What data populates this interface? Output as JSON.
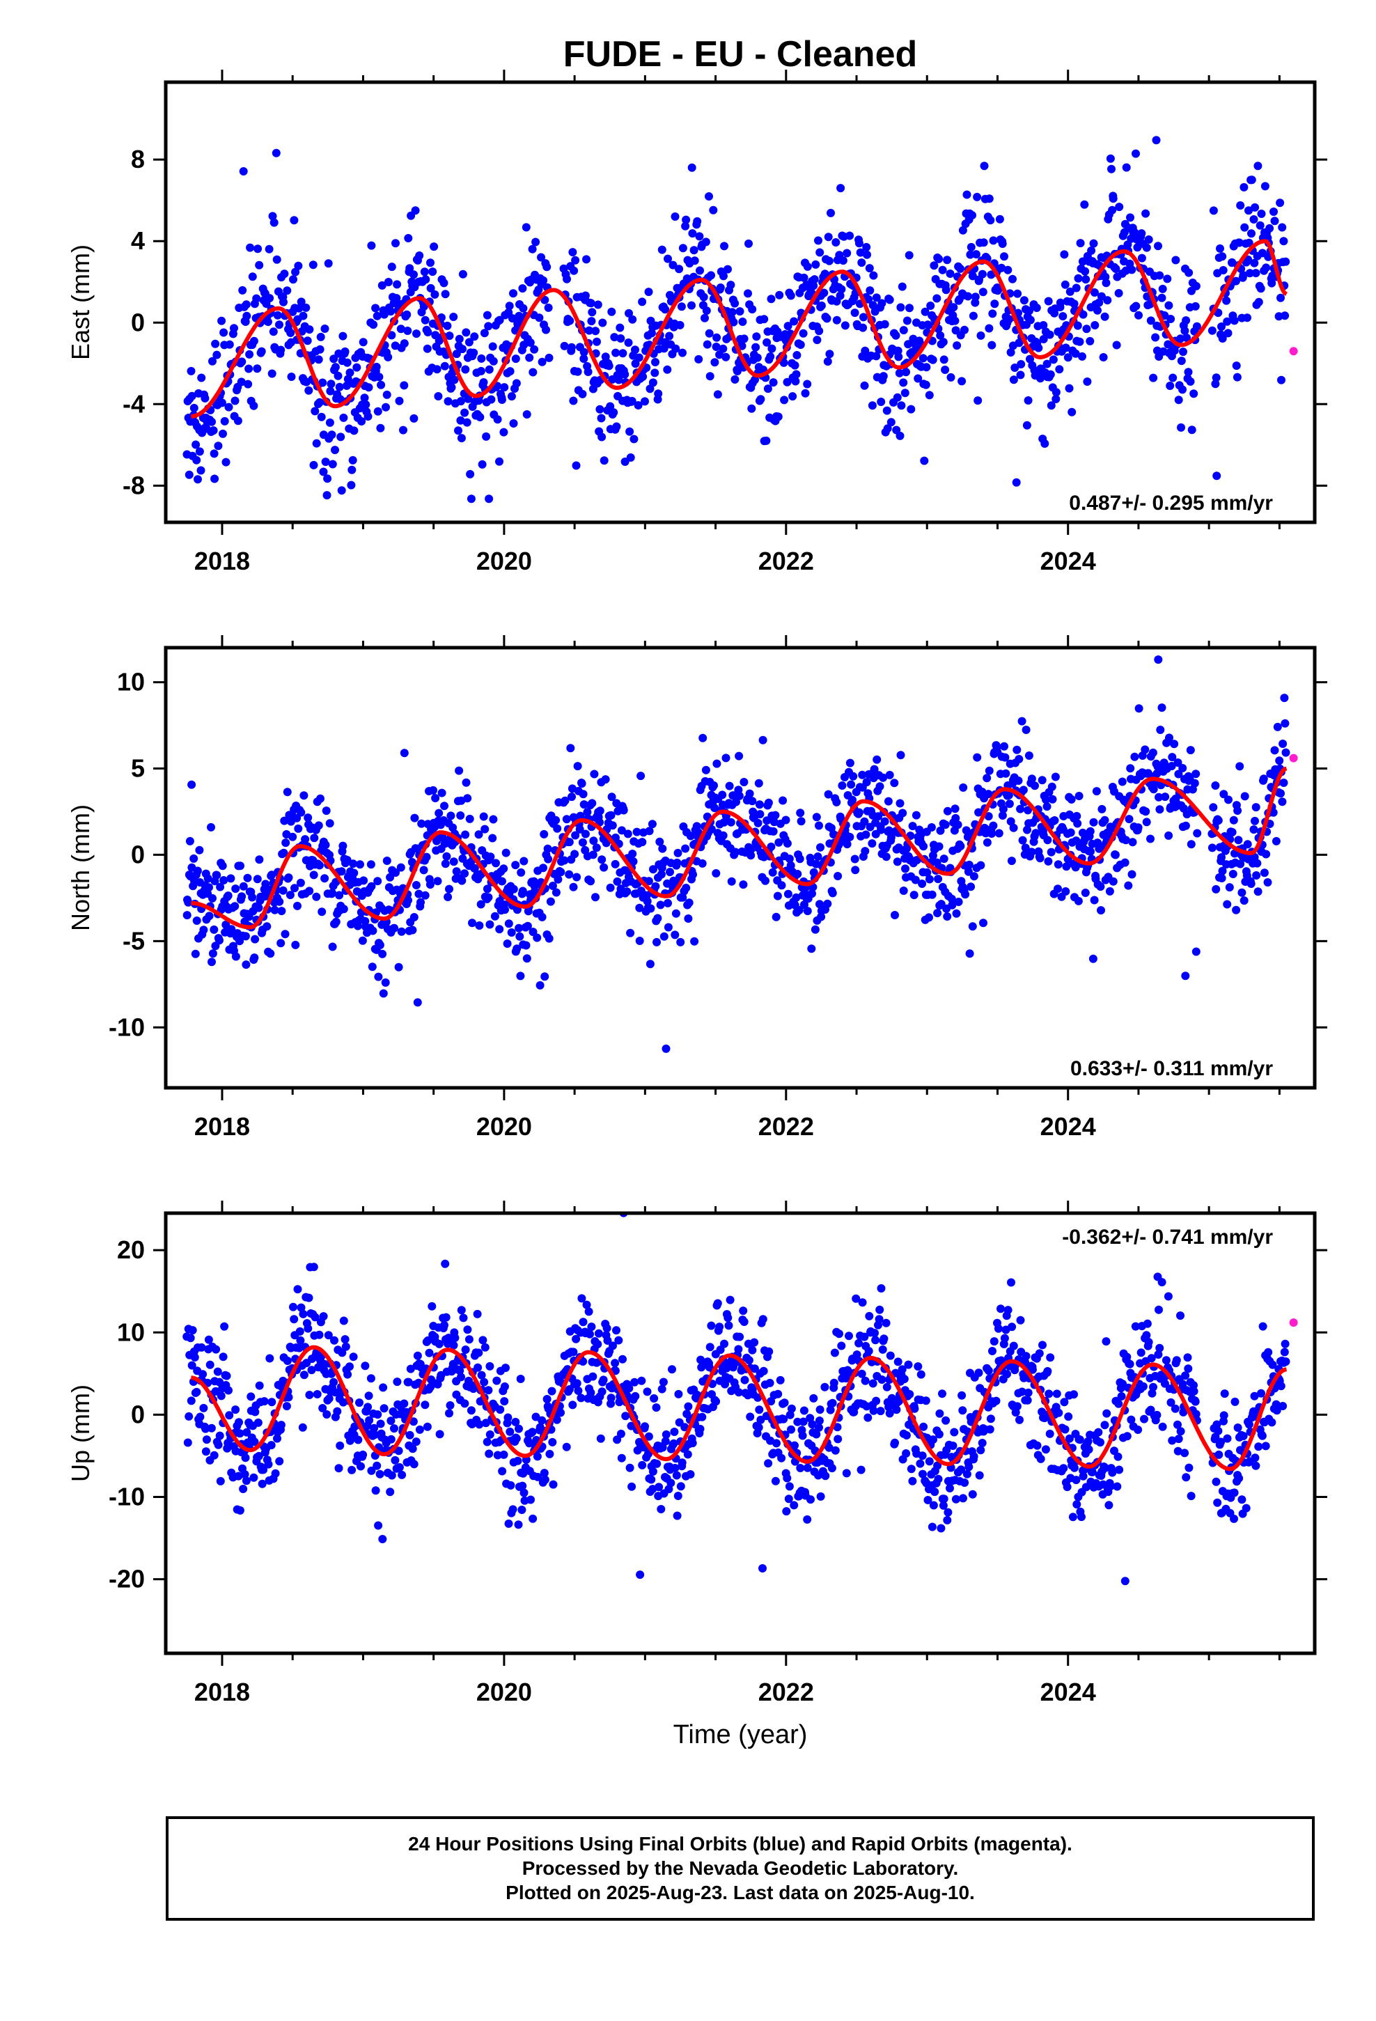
{
  "title": "FUDE  - EU - Cleaned",
  "xlabel": "Time (year)",
  "footer": {
    "line1": "24 Hour Positions Using Final Orbits (blue) and Rapid Orbits (magenta).",
    "line2": "Processed by the Nevada Geodetic Laboratory.",
    "line3": "Plotted on 2025-Aug-23. Last data on 2025-Aug-10."
  },
  "colors": {
    "final": "#0000ff",
    "rapid": "#ff1dce",
    "model": "#ff0000"
  },
  "chart_data": [
    {
      "type": "scatter",
      "component": "East",
      "ylabel": "East (mm)",
      "xlim": [
        2017.6,
        2025.75
      ],
      "ylim": [
        -9.8,
        11.8
      ],
      "yticks": [
        -8,
        -4,
        0,
        4,
        8
      ],
      "xticks": [
        2018,
        2020,
        2022,
        2024
      ],
      "velocity_label": "0.487+/- 0.295 mm/yr",
      "series": [
        {
          "name": "Final Orbits (blue)",
          "x_range": [
            2017.75,
            2025.55
          ],
          "trend_mm_per_yr": 0.487,
          "annual_amp_mm": 3.0,
          "scatter_mm": 1.8,
          "model_points": [
            [
              2017.78,
              -4.6
            ],
            [
              2018.4,
              0.7
            ],
            [
              2018.8,
              -4.1
            ],
            [
              2019.4,
              1.2
            ],
            [
              2019.8,
              -3.6
            ],
            [
              2020.35,
              1.6
            ],
            [
              2020.8,
              -3.2
            ],
            [
              2021.4,
              2.1
            ],
            [
              2021.8,
              -2.6
            ],
            [
              2022.4,
              2.5
            ],
            [
              2022.8,
              -2.2
            ],
            [
              2023.4,
              3.0
            ],
            [
              2023.8,
              -1.7
            ],
            [
              2024.4,
              3.5
            ],
            [
              2024.8,
              -1.1
            ],
            [
              2025.4,
              4.0
            ],
            [
              2025.55,
              1.4
            ]
          ]
        },
        {
          "name": "Rapid Orbits (magenta)",
          "points": [
            [
              2025.6,
              -1.4
            ]
          ]
        }
      ]
    },
    {
      "type": "scatter",
      "component": "North",
      "ylabel": "North (mm)",
      "xlim": [
        2017.6,
        2025.75
      ],
      "ylim": [
        -13.5,
        12.0
      ],
      "yticks": [
        -10,
        -5,
        0,
        5,
        10
      ],
      "xticks": [
        2018,
        2020,
        2022,
        2024
      ],
      "velocity_label": "0.633+/- 0.311 mm/yr",
      "series": [
        {
          "name": "Final Orbits (blue)",
          "x_range": [
            2017.75,
            2025.55
          ],
          "trend_mm_per_yr": 0.633,
          "annual_amp_mm": 2.6,
          "scatter_mm": 1.7,
          "model_points": [
            [
              2017.78,
              -2.8
            ],
            [
              2018.2,
              -4.2
            ],
            [
              2018.55,
              0.5
            ],
            [
              2019.15,
              -3.7
            ],
            [
              2019.55,
              1.3
            ],
            [
              2020.15,
              -3.0
            ],
            [
              2020.55,
              2.0
            ],
            [
              2021.15,
              -2.4
            ],
            [
              2021.55,
              2.5
            ],
            [
              2022.15,
              -1.7
            ],
            [
              2022.55,
              3.1
            ],
            [
              2023.15,
              -1.1
            ],
            [
              2023.55,
              3.8
            ],
            [
              2024.15,
              -0.5
            ],
            [
              2024.6,
              4.4
            ],
            [
              2025.3,
              0.1
            ],
            [
              2025.55,
              5.0
            ]
          ]
        },
        {
          "name": "Rapid Orbits (magenta)",
          "points": [
            [
              2025.6,
              5.6
            ]
          ]
        }
      ]
    },
    {
      "type": "scatter",
      "component": "Up",
      "ylabel": "Up (mm)",
      "xlim": [
        2017.6,
        2025.75
      ],
      "ylim": [
        -29.0,
        24.5
      ],
      "yticks": [
        -20,
        -10,
        0,
        10,
        20
      ],
      "xticks": [
        2018,
        2020,
        2022,
        2024
      ],
      "velocity_label": "-0.362+/- 0.741 mm/yr",
      "series": [
        {
          "name": "Final Orbits (blue)",
          "x_range": [
            2017.75,
            2025.55
          ],
          "trend_mm_per_yr": -0.362,
          "annual_amp_mm": 6.5,
          "scatter_mm": 3.8,
          "model_points": [
            [
              2017.78,
              4.5
            ],
            [
              2018.2,
              -4.3
            ],
            [
              2018.65,
              8.2
            ],
            [
              2019.15,
              -4.8
            ],
            [
              2019.6,
              7.9
            ],
            [
              2020.15,
              -5.0
            ],
            [
              2020.6,
              7.6
            ],
            [
              2021.15,
              -5.4
            ],
            [
              2021.6,
              7.2
            ],
            [
              2022.15,
              -5.7
            ],
            [
              2022.6,
              6.9
            ],
            [
              2023.15,
              -6.0
            ],
            [
              2023.6,
              6.5
            ],
            [
              2024.15,
              -6.3
            ],
            [
              2024.6,
              6.1
            ],
            [
              2025.15,
              -6.6
            ],
            [
              2025.55,
              5.5
            ]
          ]
        },
        {
          "name": "Rapid Orbits (magenta)",
          "points": [
            [
              2025.6,
              11.2
            ]
          ]
        }
      ]
    }
  ]
}
